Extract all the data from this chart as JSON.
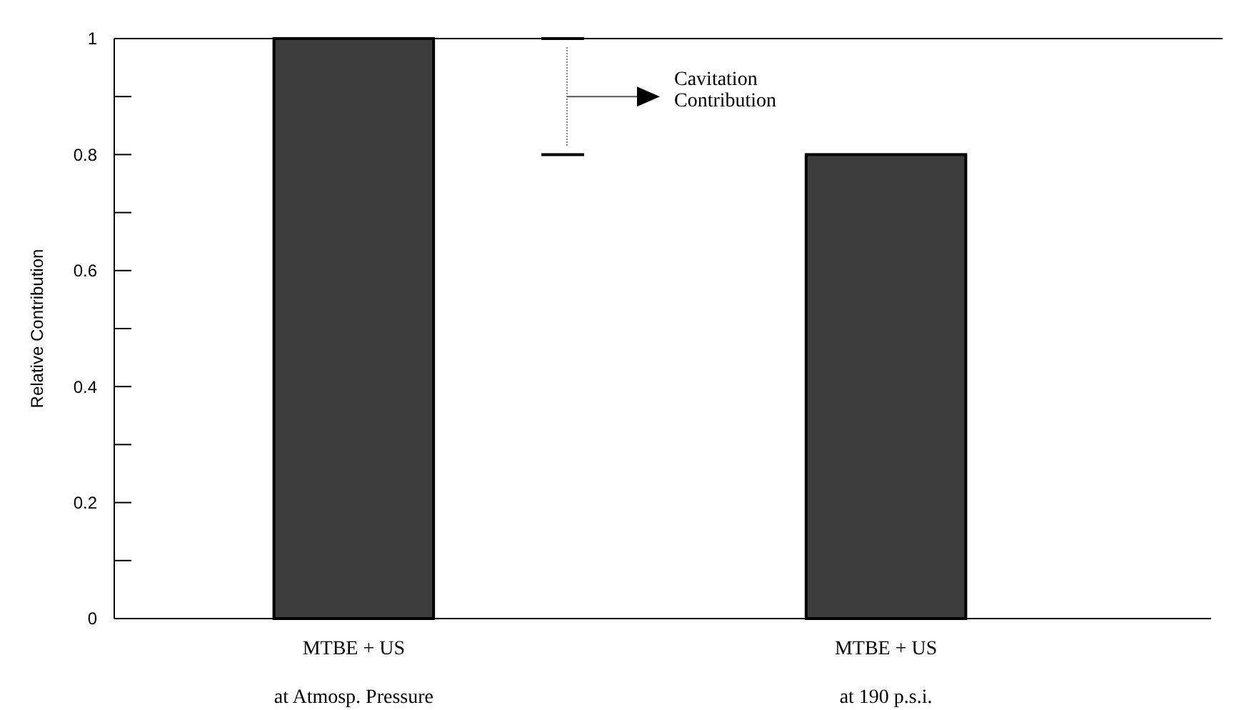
{
  "chart_data": {
    "type": "bar",
    "ylabel": "Relative Contribution",
    "categories": [
      "MTBE + US\nat Atmosp. Pressure",
      "MTBE + US\nat 190 p.s.i."
    ],
    "values": [
      1,
      0.8
    ],
    "color": "#3c3c3c",
    "ylim": [
      0,
      1
    ],
    "yticks": [
      0,
      {
        "value": 0.1,
        "label": null
      },
      0.2,
      {
        "value": 0.3,
        "label": null
      },
      0.4,
      {
        "value": 0.5,
        "label": null
      },
      0.6,
      {
        "value": 0.7,
        "label": null
      },
      0.8,
      {
        "value": 0.9,
        "label": null
      },
      1
    ],
    "annotations": [
      "Cavitation Contribution"
    ],
    "grid": false
  }
}
